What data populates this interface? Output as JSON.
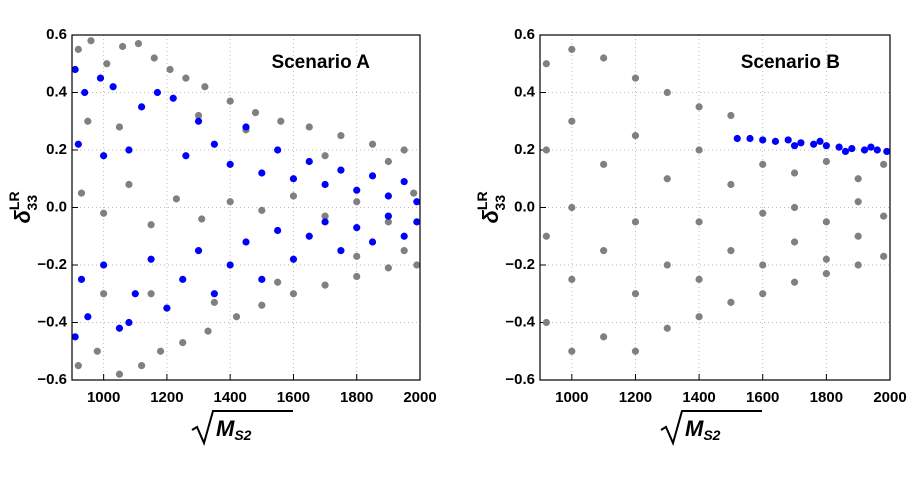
{
  "chart_data": [
    {
      "type": "scatter",
      "annotation": "Scenario A",
      "xlabel": {
        "symbol": "M",
        "sub": "S2"
      },
      "ylabel": {
        "symbol": "δ",
        "sub": "33",
        "sup": "LR"
      },
      "xlim": [
        900,
        2000
      ],
      "ylim": [
        -0.6,
        0.6
      ],
      "grid": true,
      "xticks": [
        1000,
        1200,
        1400,
        1600,
        1800,
        2000
      ],
      "yticks": [
        {
          "value": -0.6,
          "label": "−0.6"
        },
        {
          "value": -0.4,
          "label": "−0.4"
        },
        {
          "value": -0.2,
          "label": "−0.2"
        },
        {
          "value": 0,
          "label": "0.0"
        },
        0.2,
        0.4,
        0.6
      ],
      "series": [
        {
          "color": "#808080",
          "x": [
            920,
            960,
            1010,
            1060,
            1110,
            1160,
            1210,
            1260,
            1320,
            1400,
            1480,
            1560,
            1650,
            1750,
            1850,
            1950,
            920,
            980,
            1050,
            1120,
            1180,
            1250,
            1330,
            1420,
            1500,
            1600,
            1700,
            1800,
            1900,
            1990,
            930,
            1000,
            1080,
            1150,
            1230,
            1310,
            1400,
            1500,
            1600,
            1700,
            1800,
            1900,
            1980,
            950,
            1050,
            1150,
            1000,
            1300,
            1350,
            1450,
            1550,
            1700,
            1800,
            1900,
            1950
          ],
          "values": [
            0.55,
            0.58,
            0.5,
            0.56,
            0.57,
            0.52,
            0.48,
            0.45,
            0.42,
            0.37,
            0.33,
            0.3,
            0.28,
            0.25,
            0.22,
            0.2,
            -0.55,
            -0.5,
            -0.58,
            -0.55,
            -0.5,
            -0.47,
            -0.43,
            -0.38,
            -0.34,
            -0.3,
            -0.27,
            -0.24,
            -0.21,
            -0.2,
            0.05,
            -0.02,
            0.08,
            -0.06,
            0.03,
            -0.04,
            0.02,
            -0.01,
            0.04,
            -0.03,
            0.02,
            -0.05,
            0.05,
            0.3,
            0.28,
            -0.3,
            -0.3,
            0.32,
            -0.33,
            0.27,
            -0.26,
            0.18,
            -0.17,
            0.16,
            -0.15
          ]
        },
        {
          "color": "#0000ff",
          "x": [
            910,
            940,
            990,
            1030,
            1080,
            1120,
            1170,
            1220,
            1260,
            1300,
            1350,
            1400,
            1450,
            1500,
            1550,
            1600,
            1650,
            1700,
            1750,
            1800,
            1850,
            1900,
            1950,
            1990,
            920,
            1000,
            910,
            950,
            1000,
            1050,
            1100,
            1150,
            1200,
            1250,
            1300,
            1350,
            1400,
            1450,
            1500,
            1550,
            1600,
            1650,
            1700,
            1750,
            1800,
            1850,
            1900,
            1950,
            1990,
            930,
            1080
          ],
          "values": [
            0.48,
            0.4,
            0.45,
            0.42,
            0.2,
            0.35,
            0.4,
            0.38,
            0.18,
            0.3,
            0.22,
            0.15,
            0.28,
            0.12,
            0.2,
            0.1,
            0.16,
            0.08,
            0.13,
            0.06,
            0.11,
            0.04,
            0.09,
            0.02,
            0.22,
            0.18,
            -0.45,
            -0.38,
            -0.2,
            -0.42,
            -0.3,
            -0.18,
            -0.35,
            -0.25,
            -0.15,
            -0.3,
            -0.2,
            -0.12,
            -0.25,
            -0.08,
            -0.18,
            -0.1,
            -0.05,
            -0.15,
            -0.07,
            -0.12,
            -0.03,
            -0.1,
            -0.05,
            -0.25,
            -0.4
          ]
        }
      ]
    },
    {
      "type": "scatter",
      "annotation": "Scenario B",
      "xlabel": {
        "symbol": "M",
        "sub": "S2"
      },
      "ylabel": {
        "symbol": "δ",
        "sub": "33",
        "sup": "LR"
      },
      "xlim": [
        900,
        2000
      ],
      "ylim": [
        -0.6,
        0.6
      ],
      "grid": true,
      "xticks": [
        1000,
        1200,
        1400,
        1600,
        1800,
        2000
      ],
      "yticks": [
        {
          "value": -0.6,
          "label": "−0.6"
        },
        {
          "value": -0.4,
          "label": "−0.4"
        },
        {
          "value": -0.2,
          "label": "−0.2"
        },
        {
          "value": 0,
          "label": "0.0"
        },
        0.2,
        0.4,
        0.6
      ],
      "series": [
        {
          "color": "#808080",
          "x": [
            920,
            920,
            920,
            920,
            1000,
            1000,
            1000,
            1000,
            1000,
            1100,
            1100,
            1100,
            1100,
            1200,
            1200,
            1200,
            1200,
            1200,
            1300,
            1300,
            1300,
            1300,
            1400,
            1400,
            1400,
            1400,
            1400,
            1500,
            1500,
            1500,
            1500,
            1600,
            1600,
            1600,
            1600,
            1700,
            1700,
            1700,
            1700,
            1800,
            1800,
            1800,
            1800,
            1900,
            1900,
            1900,
            1900,
            1980,
            1980,
            1980
          ],
          "values": [
            0.5,
            0.2,
            -0.1,
            -0.4,
            0.55,
            0.3,
            0,
            -0.25,
            -0.5,
            0.52,
            0.15,
            -0.15,
            -0.45,
            0.45,
            0.25,
            -0.05,
            -0.3,
            -0.5,
            0.4,
            0.1,
            -0.2,
            -0.42,
            0.35,
            0.2,
            -0.05,
            -0.25,
            -0.38,
            0.32,
            0.08,
            -0.15,
            -0.33,
            0.15,
            -0.02,
            -0.2,
            -0.3,
            0.12,
            0,
            -0.12,
            -0.26,
            0.16,
            -0.05,
            -0.18,
            -0.23,
            0.1,
            0.02,
            -0.1,
            -0.2,
            0.15,
            -0.03,
            -0.17
          ]
        },
        {
          "color": "#0000ff",
          "x": [
            1520,
            1560,
            1600,
            1640,
            1680,
            1720,
            1760,
            1800,
            1840,
            1880,
            1920,
            1960,
            1990,
            1700,
            1780,
            1860,
            1940
          ],
          "values": [
            0.24,
            0.24,
            0.235,
            0.23,
            0.235,
            0.225,
            0.22,
            0.215,
            0.21,
            0.205,
            0.2,
            0.2,
            0.195,
            0.215,
            0.23,
            0.195,
            0.21
          ]
        }
      ]
    }
  ]
}
